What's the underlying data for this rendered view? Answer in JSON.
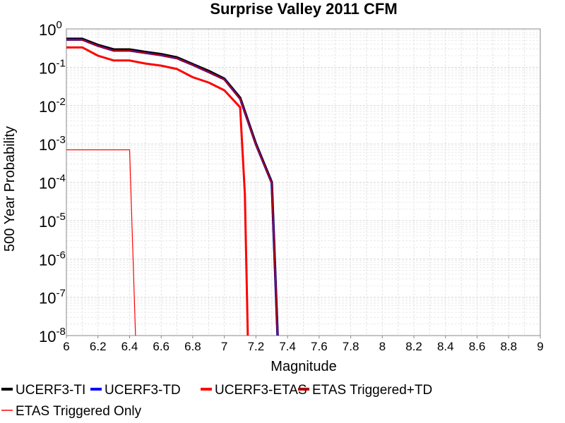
{
  "chart_data": {
    "type": "line",
    "title": "Surprise Valley 2011 CFM",
    "xlabel": "Magnitude",
    "ylabel": "500 Year Probability",
    "xlim": [
      6,
      9
    ],
    "ylim": [
      1e-08,
      1
    ],
    "y_scale": "log",
    "grid": true,
    "legend_position": "bottom",
    "x_ticks": [
      "6",
      "6.2",
      "6.4",
      "6.6",
      "6.8",
      "7",
      "7.2",
      "7.4",
      "7.6",
      "7.8",
      "8",
      "8.2",
      "8.4",
      "8.6",
      "8.8",
      "9"
    ],
    "y_ticks": [
      {
        "base": "10",
        "exp": "0"
      },
      {
        "base": "10",
        "exp": "-1"
      },
      {
        "base": "10",
        "exp": "-2"
      },
      {
        "base": "10",
        "exp": "-3"
      },
      {
        "base": "10",
        "exp": "-4"
      },
      {
        "base": "10",
        "exp": "-5"
      },
      {
        "base": "10",
        "exp": "-6"
      },
      {
        "base": "10",
        "exp": "-7"
      },
      {
        "base": "10",
        "exp": "-8"
      }
    ],
    "series": [
      {
        "name": "UCERF3-TI",
        "color": "#000000",
        "x": [
          6.0,
          6.1,
          6.2,
          6.3,
          6.4,
          6.5,
          6.6,
          6.7,
          6.8,
          6.9,
          7.0,
          7.1,
          7.2,
          7.3,
          7.34
        ],
        "y": [
          0.55,
          0.55,
          0.38,
          0.29,
          0.29,
          0.25,
          0.22,
          0.18,
          0.12,
          0.08,
          0.05,
          0.016,
          0.001,
          0.0001,
          5e-09
        ]
      },
      {
        "name": "UCERF3-TD",
        "color": "#0000ff",
        "x": [
          6.0,
          6.1,
          6.2,
          6.3,
          6.4,
          6.5,
          6.6,
          6.7,
          6.8,
          6.9,
          7.0,
          7.1,
          7.2,
          7.3,
          7.34
        ],
        "y": [
          0.52,
          0.52,
          0.36,
          0.27,
          0.27,
          0.235,
          0.205,
          0.17,
          0.115,
          0.075,
          0.048,
          0.015,
          0.00095,
          9.5e-05,
          5e-09
        ]
      },
      {
        "name": "UCERF3-ETAS",
        "color": "#ff0000",
        "x": [
          6.0,
          6.1,
          6.2,
          6.3,
          6.4,
          6.5,
          6.6,
          6.7,
          6.8,
          6.9,
          7.0,
          7.1,
          7.13,
          7.15
        ],
        "y": [
          0.33,
          0.33,
          0.2,
          0.15,
          0.15,
          0.125,
          0.11,
          0.09,
          0.055,
          0.04,
          0.025,
          0.009,
          5e-05,
          5e-09
        ]
      },
      {
        "name": "ETAS Triggered+TD",
        "color": "#b00000",
        "x": [
          6.0,
          6.1,
          6.2,
          6.3,
          6.4,
          6.5,
          6.6,
          6.7,
          6.8,
          6.9,
          7.0,
          7.1,
          7.2,
          7.3,
          7.34
        ],
        "y": [
          0.52,
          0.52,
          0.36,
          0.27,
          0.27,
          0.235,
          0.205,
          0.17,
          0.115,
          0.075,
          0.048,
          0.015,
          0.00095,
          9.5e-05,
          5e-09
        ]
      },
      {
        "name": "ETAS Triggered Only",
        "color": "#ff0000",
        "x": [
          6.0,
          6.4,
          6.44
        ],
        "y": [
          0.0007,
          0.0007,
          5e-09
        ]
      }
    ]
  }
}
